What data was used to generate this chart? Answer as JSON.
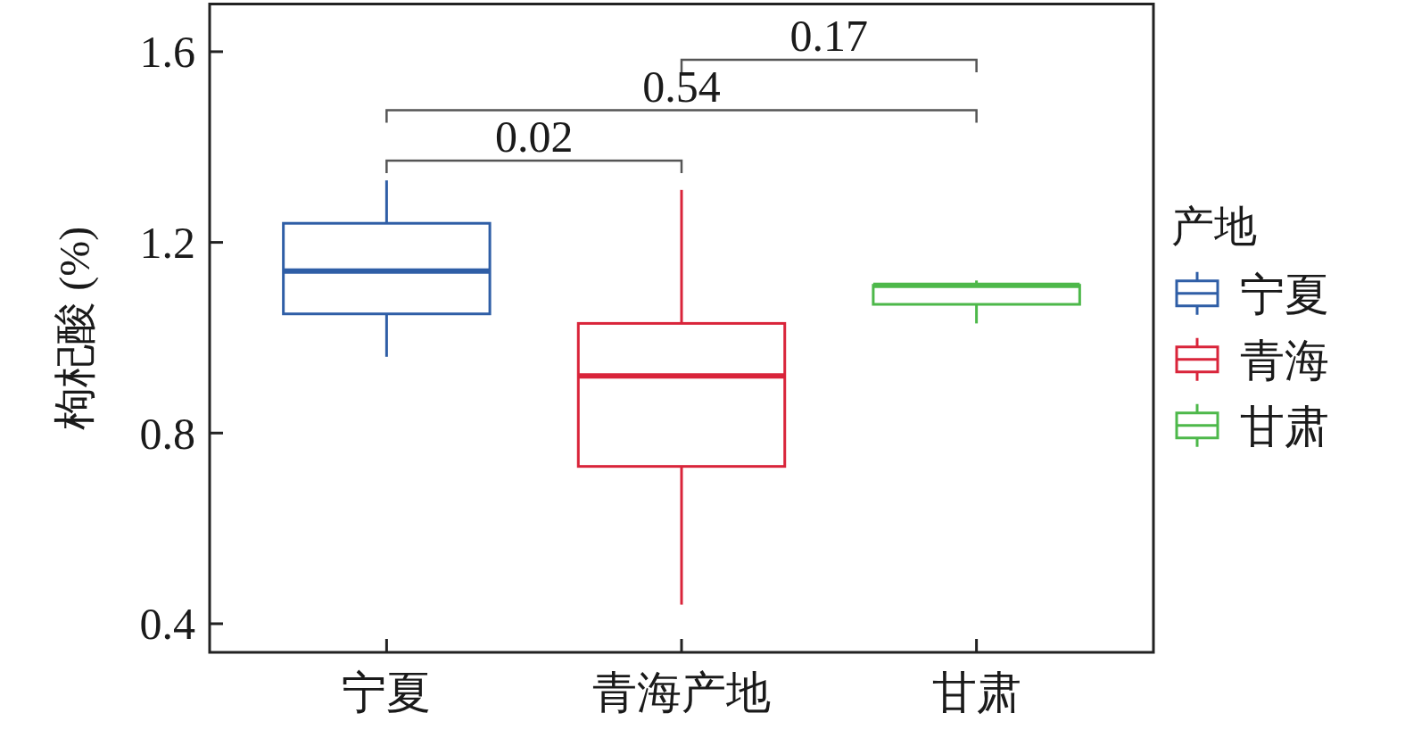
{
  "chart_data": {
    "type": "box",
    "ylabel": "枸杞酸 (%)",
    "categories": [
      "宁夏",
      "青海产地",
      "甘肃"
    ],
    "ylim": [
      0.34,
      1.7
    ],
    "yticks": [
      0.4,
      0.8,
      1.2,
      1.6
    ],
    "legend": "right",
    "legend_title": "产地",
    "annotations": [
      "0.17",
      "0.54",
      "0.02"
    ],
    "series": [
      {
        "name": "宁夏",
        "color": "#2f5ea6",
        "boxes": [
          {
            "low": 0.96,
            "q1": 1.05,
            "median": 1.14,
            "q3": 1.24,
            "high": 1.33
          },
          null,
          null
        ]
      },
      {
        "name": "青海",
        "color": "#d9243a",
        "boxes": [
          null,
          {
            "low": 0.44,
            "q1": 0.73,
            "median": 0.92,
            "q3": 1.03,
            "high": 1.31
          },
          null
        ]
      },
      {
        "name": "甘肃",
        "color": "#4db84a",
        "boxes": [
          null,
          null,
          {
            "low": 1.03,
            "q1": 1.07,
            "median": 1.11,
            "q3": 1.11,
            "high": 1.12
          }
        ]
      }
    ]
  }
}
